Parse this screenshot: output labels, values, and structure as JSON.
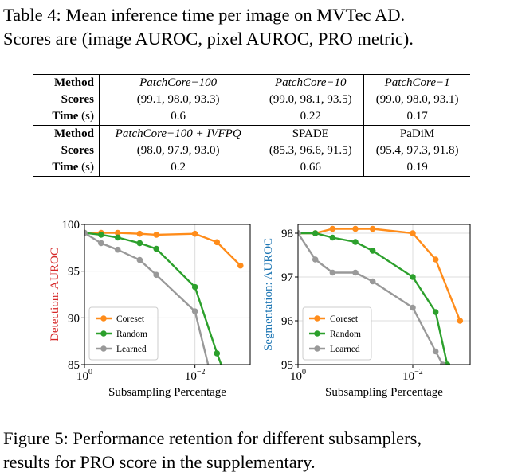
{
  "table_caption": {
    "line1": "Table 4: Mean inference time per image on MVTec AD.",
    "line2": "Scores are (image AUROC, pixel AUROC, PRO metric)."
  },
  "table": {
    "row_labels": {
      "method": "Method",
      "scores": "Scores",
      "time": "Time",
      "time_unit": "(s)"
    },
    "group1": [
      {
        "method": "PatchCore−100",
        "scores": "(99.1, 98.0, 93.3)",
        "time": "0.6"
      },
      {
        "method": "PatchCore−10",
        "scores": "(99.0, 98.1, 93.5)",
        "time": "0.22"
      },
      {
        "method": "PatchCore−1",
        "scores": "(99.0, 98.0, 93.1)",
        "time": "0.17"
      }
    ],
    "group2": [
      {
        "method": "PatchCore−100 + IVFPQ",
        "scores": "(98.0, 97.9, 93.0)",
        "time": "0.2"
      },
      {
        "method": "SPADE",
        "scores": "(85.3, 96.6, 91.5)",
        "time": "0.66"
      },
      {
        "method": "PaDiM",
        "scores": "(95.4, 97.3, 91.8)",
        "time": "0.19"
      }
    ]
  },
  "colors": {
    "coreset": "#ff8c1a",
    "random": "#2ca02c",
    "learned": "#999999",
    "detection_label": "#d62728",
    "segmentation_label": "#1f77b4"
  },
  "chart_data": [
    {
      "type": "line",
      "ylabel_prefix": "Detection: ",
      "ylabel_accent": "AUROC",
      "xlabel": "Subsampling Percentage",
      "x_scale": "log",
      "xlim": [
        1,
        0.001
      ],
      "ylim": [
        85,
        100
      ],
      "x_ticks": [
        {
          "value": 1,
          "label": "10",
          "exp": "0"
        },
        {
          "value": 0.01,
          "label": "10",
          "exp": "−2"
        }
      ],
      "y_ticks": [
        100,
        95,
        90,
        85
      ],
      "grid": true,
      "legend": "bottom-left",
      "series": [
        {
          "name": "Coreset",
          "color_key": "coreset",
          "x": [
            1,
            0.5,
            0.25,
            0.1,
            0.05,
            0.01,
            0.004,
            0.0015
          ],
          "y": [
            99.1,
            99.1,
            99.1,
            99.0,
            98.9,
            99.0,
            98.1,
            95.6
          ]
        },
        {
          "name": "Random",
          "color_key": "random",
          "x": [
            1,
            0.5,
            0.25,
            0.1,
            0.05,
            0.01,
            0.004,
            0.0025
          ],
          "y": [
            99.1,
            98.9,
            98.6,
            98.0,
            97.4,
            93.3,
            86.2,
            83.0
          ]
        },
        {
          "name": "Learned",
          "color_key": "learned",
          "x": [
            1,
            0.5,
            0.25,
            0.1,
            0.05,
            0.01,
            0.005
          ],
          "y": [
            99.1,
            98.0,
            97.3,
            96.2,
            94.6,
            90.7,
            83.5
          ]
        }
      ]
    },
    {
      "type": "line",
      "ylabel_prefix": "Segmentation: ",
      "ylabel_accent": "AUROC",
      "xlabel": "Subsampling Percentage",
      "x_scale": "log",
      "xlim": [
        1,
        0.001
      ],
      "ylim": [
        95,
        98.2
      ],
      "x_ticks": [
        {
          "value": 1,
          "label": "10",
          "exp": "0"
        },
        {
          "value": 0.01,
          "label": "10",
          "exp": "−2"
        }
      ],
      "y_ticks": [
        98,
        97,
        96,
        95
      ],
      "grid": true,
      "legend": "bottom-left",
      "series": [
        {
          "name": "Coreset",
          "color_key": "coreset",
          "x": [
            1,
            0.5,
            0.25,
            0.1,
            0.05,
            0.01,
            0.004,
            0.0015
          ],
          "y": [
            98.0,
            98.0,
            98.1,
            98.1,
            98.1,
            98.0,
            97.4,
            96.0
          ]
        },
        {
          "name": "Random",
          "color_key": "random",
          "x": [
            1,
            0.5,
            0.25,
            0.1,
            0.05,
            0.01,
            0.004,
            0.0025
          ],
          "y": [
            98.0,
            98.0,
            97.9,
            97.8,
            97.6,
            97.0,
            96.2,
            95.0
          ]
        },
        {
          "name": "Learned",
          "color_key": "learned",
          "x": [
            1,
            0.5,
            0.25,
            0.1,
            0.05,
            0.01,
            0.004,
            0.003
          ],
          "y": [
            98.0,
            97.4,
            97.1,
            97.1,
            96.9,
            96.3,
            95.3,
            95.0
          ]
        }
      ]
    }
  ],
  "figure_caption": {
    "line1": "Figure 5: Performance retention for different subsamplers,",
    "line2": "results for PRO score in the supplementary."
  }
}
